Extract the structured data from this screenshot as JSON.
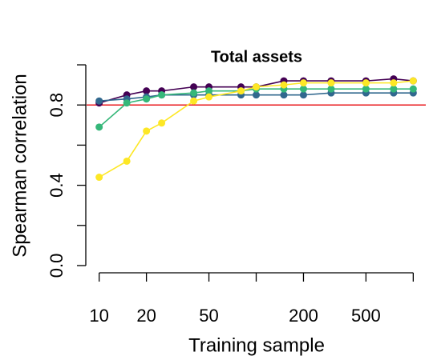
{
  "chart_data": {
    "type": "line",
    "title": "Total assets",
    "x_label": "Training sample",
    "y_label": "Spearman correlation",
    "x_log_scale": true,
    "x": [
      10,
      15,
      20,
      25,
      40,
      50,
      80,
      100,
      150,
      200,
      300,
      500,
      750,
      1000
    ],
    "series": [
      {
        "color": "#440154",
        "values": [
          0.81,
          0.85,
          0.87,
          0.87,
          0.89,
          0.89,
          0.89,
          0.89,
          0.92,
          0.92,
          0.92,
          0.92,
          0.93,
          0.92
        ]
      },
      {
        "color": "#31688e",
        "values": [
          0.82,
          0.83,
          0.84,
          0.85,
          0.85,
          0.85,
          0.85,
          0.85,
          0.85,
          0.85,
          0.86,
          0.86,
          0.86,
          0.86
        ]
      },
      {
        "color": "#35b779",
        "values": [
          0.69,
          0.81,
          0.83,
          0.85,
          0.86,
          0.87,
          0.87,
          0.88,
          0.88,
          0.88,
          0.88,
          0.88,
          0.88,
          0.88
        ]
      },
      {
        "color": "#fde725",
        "values": [
          0.44,
          0.52,
          0.67,
          0.71,
          0.82,
          0.84,
          0.87,
          0.89,
          0.9,
          0.91,
          0.91,
          0.91,
          0.91,
          0.92
        ]
      }
    ],
    "hline": {
      "value": 0.8,
      "color": "#e8191e"
    },
    "xlim": [
      8.318,
      1202
    ],
    "ylim": [
      -0.04,
      1.04
    ],
    "xticks": [
      10,
      20,
      50,
      200,
      500
    ],
    "xminor_ticks": [
      100,
      1000
    ],
    "yticks": [
      {
        "value": 0,
        "label": "0.0"
      },
      {
        "value": 0.4,
        "label": "0.4"
      },
      {
        "value": 0.8,
        "label": "0.8"
      }
    ],
    "yminor_ticks": [
      0.2,
      0.6,
      1.0
    ]
  }
}
